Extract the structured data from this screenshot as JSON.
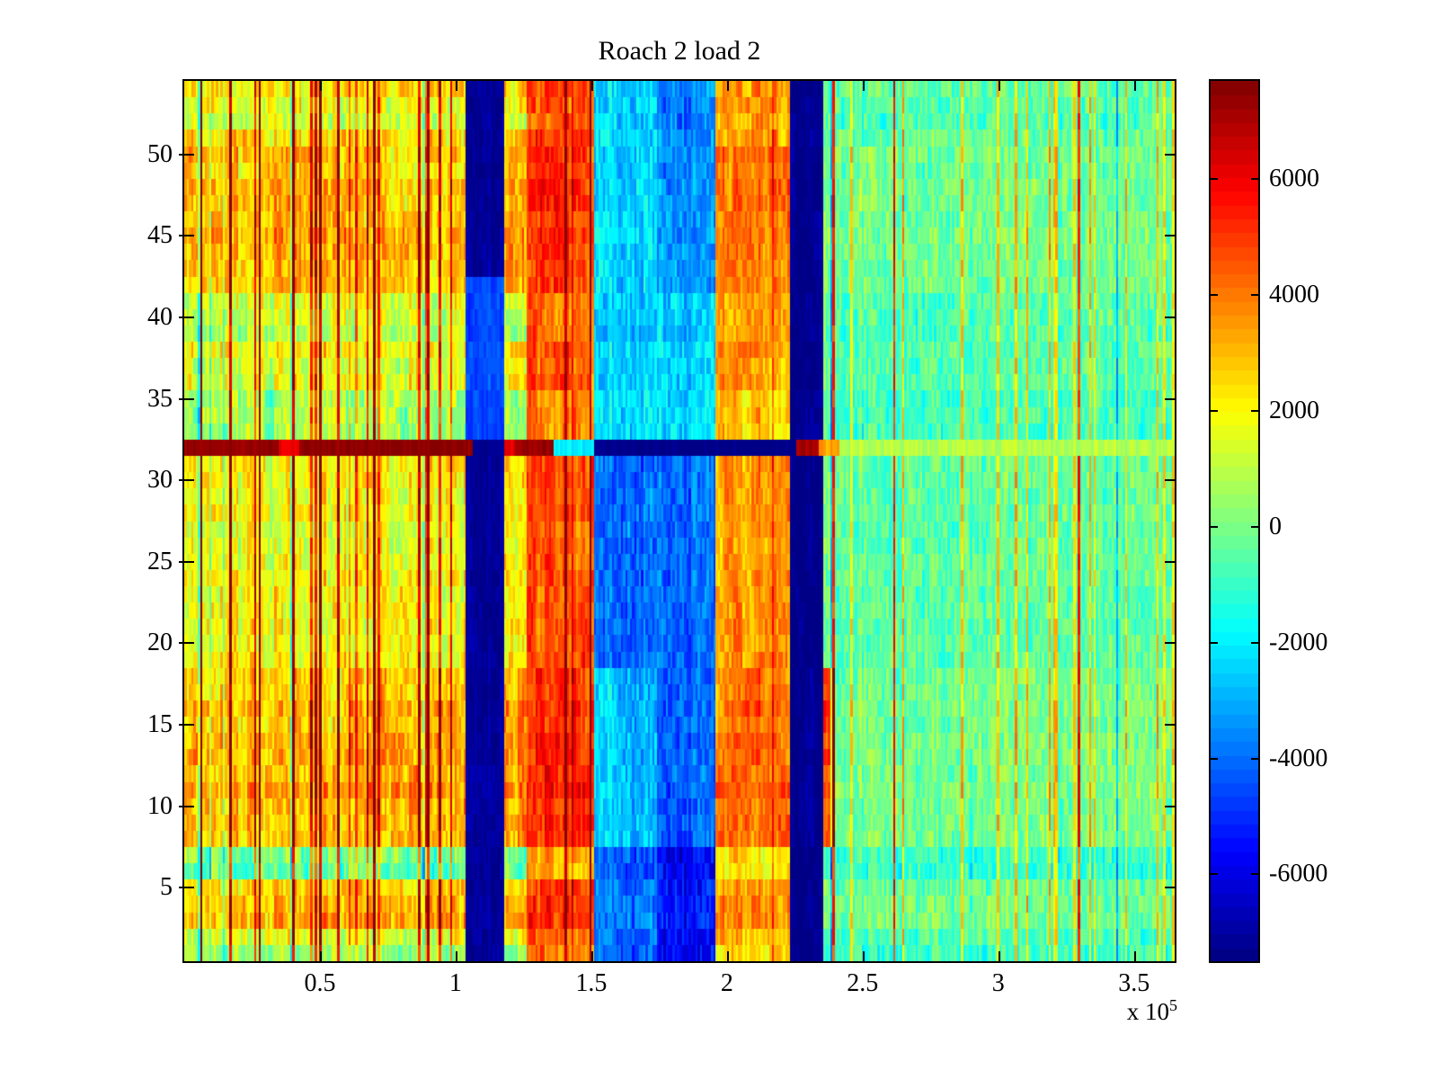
{
  "chart_data": {
    "type": "heatmap",
    "title": "Roach 2 load 2",
    "colormap": "jet",
    "colormap_levels": 64,
    "clim": [
      -7500,
      7700
    ],
    "grid": {
      "rows": 54,
      "cols": 440
    },
    "x_axis": {
      "range_e5": [
        0,
        3.65
      ],
      "exponent_prefix": "x 10",
      "exponent_power": "5",
      "ticks": [
        {
          "label": "0.5",
          "value": 0.5
        },
        {
          "label": "1",
          "value": 1.0
        },
        {
          "label": "1.5",
          "value": 1.5
        },
        {
          "label": "2",
          "value": 2.0
        },
        {
          "label": "2.5",
          "value": 2.5
        },
        {
          "label": "3",
          "value": 3.0
        },
        {
          "label": "3.5",
          "value": 3.5
        }
      ]
    },
    "y_axis": {
      "ticks": [
        {
          "label": "5",
          "row": 5
        },
        {
          "label": "10",
          "row": 10
        },
        {
          "label": "15",
          "row": 15
        },
        {
          "label": "20",
          "row": 20
        },
        {
          "label": "25",
          "row": 25
        },
        {
          "label": "30",
          "row": 30
        },
        {
          "label": "35",
          "row": 35
        },
        {
          "label": "40",
          "row": 40
        },
        {
          "label": "45",
          "row": 45
        },
        {
          "label": "50",
          "row": 50
        }
      ]
    },
    "colorbar": {
      "ticks": [
        {
          "label": "6000",
          "value": 6000
        },
        {
          "label": "4000",
          "value": 4000
        },
        {
          "label": "2000",
          "value": 2000
        },
        {
          "label": "0",
          "value": 0
        },
        {
          "label": "-2000",
          "value": -2000
        },
        {
          "label": "-4000",
          "value": -4000
        },
        {
          "label": "-6000",
          "value": -6000
        }
      ]
    },
    "structure": {
      "seed": 20240613,
      "column_bands": [
        {
          "name": "left-warm-region",
          "x": [
            0.0,
            1.04
          ],
          "base": 1500,
          "row_gain": 1.0,
          "cell_noise": 1000,
          "col_noise": 700,
          "spike_gain": 1.0
        },
        {
          "name": "navy-band-1",
          "x": [
            1.04,
            1.18
          ],
          "base": -7200,
          "row_gain": 0.05,
          "cell_noise": 350,
          "col_noise": 150,
          "spike_gain": 0.05,
          "row_overrides": [
            {
              "rows": [
                33,
                42
              ],
              "delta": 2600
            }
          ]
        },
        {
          "name": "warm-gap",
          "x": [
            1.18,
            1.26
          ],
          "base": 1700,
          "row_gain": 1.1,
          "cell_noise": 1000,
          "col_noise": 500,
          "spike_gain": 0.6
        },
        {
          "name": "red-band",
          "x": [
            1.26,
            1.51
          ],
          "base": 4200,
          "row_gain": 0.55,
          "cell_noise": 800,
          "col_noise": 500,
          "spike_gain": 0.5
        },
        {
          "name": "cyan-blue-band",
          "x": [
            1.51,
            1.96
          ],
          "base": -2500,
          "row_gain": 0.15,
          "cell_noise": 900,
          "col_noise": 600,
          "spike_gain": 0.15,
          "row_overrides": [
            {
              "rows": [
                1,
                7
              ],
              "delta": -1500
            },
            {
              "rows": [
                8,
                18
              ],
              "delta": -300
            },
            {
              "rows": [
                19,
                31
              ],
              "delta": -1500
            },
            {
              "rows": [
                33,
                35
              ],
              "delta": 500
            }
          ],
          "sub_bands": [
            {
              "x": [
                1.74,
                1.96
              ],
              "rows": [
                1,
                18
              ],
              "delta": -1600
            },
            {
              "x": [
                1.74,
                1.96
              ],
              "rows": [
                42,
                54
              ],
              "delta": -1200
            }
          ]
        },
        {
          "name": "orange-band",
          "x": [
            1.96,
            2.23
          ],
          "base": 3100,
          "row_gain": 0.55,
          "cell_noise": 800,
          "col_noise": 500,
          "spike_gain": 0.5
        },
        {
          "name": "navy-band-2",
          "x": [
            2.23,
            2.36
          ],
          "base": -7300,
          "row_gain": 0.03,
          "cell_noise": 300,
          "col_noise": 120,
          "spike_gain": 0.03
        },
        {
          "name": "right-green-region",
          "x": [
            2.36,
            3.65
          ],
          "base": -600,
          "row_gain": 0.3,
          "cell_noise": 900,
          "col_noise": 600,
          "spike_gain": 1.0
        }
      ],
      "row_bands": [
        {
          "rows": [
            1,
            1
          ],
          "delta": -1100
        },
        {
          "rows": [
            2,
            2
          ],
          "delta": 300
        },
        {
          "rows": [
            3,
            4
          ],
          "delta": 1800
        },
        {
          "rows": [
            5,
            5
          ],
          "delta": 700
        },
        {
          "rows": [
            6,
            7
          ],
          "delta": -1600
        },
        {
          "rows": [
            8,
            12
          ],
          "delta": 2000
        },
        {
          "rows": [
            13,
            18
          ],
          "delta": 1600
        },
        {
          "rows": [
            19,
            23
          ],
          "delta": 500
        },
        {
          "rows": [
            24,
            31
          ],
          "delta": 650
        },
        {
          "rows": [
            33,
            35
          ],
          "delta": -700
        },
        {
          "rows": [
            36,
            38
          ],
          "delta": 300
        },
        {
          "rows": [
            39,
            41
          ],
          "delta": -300
        },
        {
          "rows": [
            42,
            46
          ],
          "delta": 1500
        },
        {
          "rows": [
            47,
            50
          ],
          "delta": 1300
        },
        {
          "rows": [
            51,
            51
          ],
          "delta": 800
        },
        {
          "rows": [
            52,
            52
          ],
          "delta": -400
        },
        {
          "rows": [
            53,
            53
          ],
          "delta": 200
        },
        {
          "rows": [
            54,
            54
          ],
          "delta": 600
        }
      ],
      "anomaly_row": {
        "row": 32,
        "segments": [
          {
            "x": [
              0.0,
              0.35
            ],
            "value": 7400,
            "noise": 300
          },
          {
            "x": [
              0.35,
              0.42
            ],
            "value": 6200,
            "noise": 300
          },
          {
            "x": [
              0.42,
              1.06
            ],
            "value": 7450,
            "noise": 250
          },
          {
            "x": [
              1.06,
              1.18
            ],
            "value": -7200,
            "noise": 200
          },
          {
            "x": [
              1.18,
              1.22
            ],
            "value": 6200,
            "noise": 300
          },
          {
            "x": [
              1.22,
              1.36
            ],
            "value": 7300,
            "noise": 300
          },
          {
            "x": [
              1.36,
              1.51
            ],
            "value": -2000,
            "noise": 500
          },
          {
            "x": [
              1.51,
              2.26
            ],
            "value": -7350,
            "noise": 150
          },
          {
            "x": [
              2.26,
              2.34
            ],
            "value": 6900,
            "noise": 400
          },
          {
            "x": [
              2.34,
              2.41
            ],
            "value": 3400,
            "noise": 500
          },
          {
            "x": [
              2.41,
              3.65
            ],
            "value": 900,
            "noise": 600
          }
        ]
      },
      "special_lines": [
        {
          "x": 0.06,
          "delta": 6800
        },
        {
          "x": 0.17,
          "delta": 5200
        },
        {
          "x": 0.28,
          "delta": 6800
        },
        {
          "x": 0.405,
          "delta": 5600
        },
        {
          "x": 0.5,
          "delta": 6800
        },
        {
          "x": 0.565,
          "delta": 5200
        },
        {
          "x": 0.7,
          "delta": 6800
        },
        {
          "x": 0.9,
          "delta": 5000
        },
        {
          "x": 1.41,
          "delta": 6200
        },
        {
          "x": 1.5,
          "delta": 6800
        },
        {
          "x": 2.39,
          "delta": 5600
        },
        {
          "x": 2.62,
          "delta": 6200
        },
        {
          "x": 3.3,
          "delta": 6000
        }
      ],
      "orange_lines": [
        {
          "x": 2.46,
          "delta": 3000
        },
        {
          "x": 2.65,
          "delta": 3400
        },
        {
          "x": 2.87,
          "delta": 3400
        },
        {
          "x": 3.0,
          "delta": 2800
        },
        {
          "x": 3.11,
          "delta": 3400
        },
        {
          "x": 3.34,
          "delta": 3400
        },
        {
          "x": 3.47,
          "delta": 2800
        },
        {
          "x": 3.59,
          "delta": 3400
        }
      ],
      "hot_patch": {
        "x": [
          2.36,
          2.4
        ],
        "rows": [
          8,
          18
        ],
        "delta": 4600
      },
      "random_spikes": {
        "probability": 0.05,
        "min_delta": 2200,
        "max_delta": 4200,
        "negative_probability": 0.03,
        "negative_delta": 2400
      },
      "block_noise": {
        "cols_per_block": 4,
        "amplitude": 700
      },
      "row_jitter": 350
    }
  }
}
